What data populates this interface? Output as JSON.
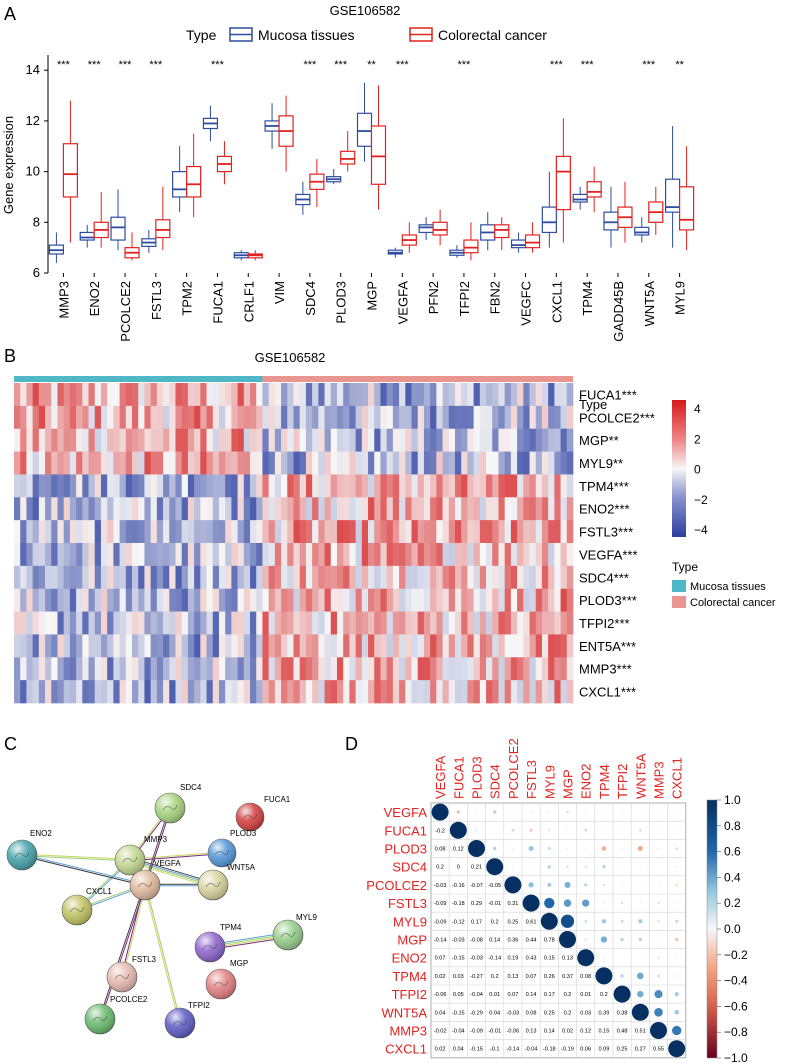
{
  "chart_data": [
    {
      "panel": "A",
      "type": "box",
      "title": "GSE106582",
      "ylabel": "Gene expression",
      "ylim": [
        6,
        14.6
      ],
      "yticks": [
        6,
        8,
        10,
        12,
        14
      ],
      "legend": {
        "title": "Type",
        "position": "top",
        "entries": [
          "Mucosa tissues",
          "Colorectal cancer"
        ]
      },
      "colors": {
        "mucosa": "#2E4DA0",
        "cancer": "#E2221F"
      },
      "categories": [
        "MMP3",
        "ENO2",
        "PCOLCE2",
        "FSTL3",
        "TPM2",
        "FUCA1",
        "CRLF1",
        "VIM",
        "SDC4",
        "PLOD3",
        "MGP",
        "VEGFA",
        "PFN2",
        "TFPI2",
        "FBN2",
        "VEGFC",
        "CXCL1",
        "TPM4",
        "GADD45B",
        "WNT5A",
        "MYL9"
      ],
      "significance": [
        "***",
        "***",
        "***",
        "***",
        "",
        "***",
        "",
        "",
        "***",
        "***",
        "**",
        "***",
        "",
        "***",
        "",
        "",
        "***",
        "***",
        "",
        "***",
        "**"
      ],
      "series": [
        {
          "name": "Mucosa tissues",
          "boxes": [
            [
              6.4,
              6.75,
              6.9,
              7.1,
              7.6
            ],
            [
              7.0,
              7.3,
              7.4,
              7.6,
              7.9
            ],
            [
              6.9,
              7.3,
              7.8,
              8.2,
              9.3
            ],
            [
              6.8,
              7.05,
              7.2,
              7.35,
              7.7
            ],
            [
              8.4,
              9.0,
              9.3,
              10.0,
              11.0
            ],
            [
              11.2,
              11.7,
              11.9,
              12.1,
              12.6
            ],
            [
              6.5,
              6.6,
              6.7,
              6.8,
              6.9
            ],
            [
              10.9,
              11.6,
              11.8,
              12.0,
              12.7
            ],
            [
              8.3,
              8.7,
              8.9,
              9.1,
              9.6
            ],
            [
              9.5,
              9.6,
              9.7,
              9.8,
              10.1
            ],
            [
              10.4,
              11.0,
              11.6,
              12.3,
              13.5
            ],
            [
              6.6,
              6.75,
              6.8,
              6.9,
              7.0
            ],
            [
              7.3,
              7.6,
              7.8,
              7.9,
              8.2
            ],
            [
              6.6,
              6.7,
              6.8,
              6.9,
              7.1
            ],
            [
              6.9,
              7.3,
              7.6,
              7.9,
              8.4
            ],
            [
              6.8,
              7.0,
              7.1,
              7.3,
              7.6
            ],
            [
              7.0,
              7.6,
              8.0,
              8.6,
              10.0
            ],
            [
              8.5,
              8.8,
              8.9,
              9.1,
              9.4
            ],
            [
              7.0,
              7.7,
              8.0,
              8.4,
              9.4
            ],
            [
              7.2,
              7.5,
              7.6,
              7.8,
              8.2
            ],
            [
              7.0,
              8.4,
              8.6,
              9.7,
              11.8
            ]
          ]
        },
        {
          "name": "Colorectal cancer",
          "boxes": [
            [
              7.2,
              9.0,
              9.9,
              11.1,
              12.8
            ],
            [
              7.0,
              7.4,
              7.7,
              8.0,
              9.2
            ],
            [
              6.5,
              6.6,
              6.8,
              7.0,
              7.6
            ],
            [
              6.9,
              7.4,
              7.7,
              8.1,
              9.4
            ],
            [
              8.2,
              9.0,
              9.5,
              10.2,
              11.5
            ],
            [
              9.5,
              10.0,
              10.3,
              10.6,
              11.2
            ],
            [
              6.5,
              6.6,
              6.7,
              6.75,
              6.9
            ],
            [
              10.0,
              11.0,
              11.6,
              12.2,
              13.0
            ],
            [
              8.6,
              9.3,
              9.6,
              9.9,
              10.5
            ],
            [
              10.0,
              10.3,
              10.5,
              10.8,
              11.6
            ],
            [
              8.5,
              9.5,
              10.6,
              11.8,
              13.4
            ],
            [
              6.8,
              7.1,
              7.3,
              7.5,
              8.0
            ],
            [
              7.1,
              7.5,
              7.7,
              8.0,
              8.5
            ],
            [
              6.5,
              6.8,
              7.0,
              7.3,
              8.0
            ],
            [
              6.9,
              7.4,
              7.7,
              7.9,
              8.2
            ],
            [
              6.8,
              7.0,
              7.2,
              7.5,
              8.0
            ],
            [
              7.2,
              8.5,
              10.0,
              10.6,
              12.1
            ],
            [
              8.4,
              9.0,
              9.2,
              9.6,
              10.2
            ],
            [
              7.2,
              7.8,
              8.2,
              8.6,
              9.6
            ],
            [
              7.5,
              8.0,
              8.4,
              8.8,
              9.4
            ],
            [
              6.9,
              7.7,
              8.1,
              9.4,
              11.0
            ]
          ]
        }
      ]
    },
    {
      "panel": "B",
      "type": "heatmap",
      "title": "GSE106582",
      "annotation_label": "Type",
      "genes": [
        "FUCA1***",
        "PCOLCE2***",
        "MGP**",
        "MYL9**",
        "TPM4***",
        "ENO2***",
        "FSTL3***",
        "VEGFA***",
        "SDC4***",
        "PLOD3***",
        "TFPI2***",
        "ENT5A***",
        "MMP3***",
        "CXCL1***"
      ],
      "group_pattern": [
        -1,
        -1,
        -1,
        -1,
        1,
        1,
        1,
        1,
        1,
        1,
        1,
        1,
        1,
        1
      ],
      "scale_ticks": [
        4,
        2,
        0,
        -2,
        -4
      ],
      "legend": {
        "title": "Type",
        "entries": [
          {
            "name": "Mucosa tissues",
            "color": "#4EB8C6"
          },
          {
            "name": "Colorectal cancer",
            "color": "#E99590"
          }
        ]
      }
    },
    {
      "panel": "C",
      "type": "network",
      "nodes": [
        {
          "name": "SDC4",
          "color": "#A6D37C"
        },
        {
          "name": "FUCA1",
          "color": "#D43A3A"
        },
        {
          "name": "ENO2",
          "color": "#3F9FA8"
        },
        {
          "name": "MMP3",
          "color": "#BFD58C"
        },
        {
          "name": "PLOD3",
          "color": "#4F93D6"
        },
        {
          "name": "WNT5A",
          "color": "#D8D29A"
        },
        {
          "name": "VEGFA",
          "color": "#E0B79A"
        },
        {
          "name": "CXCL1",
          "color": "#BFC25E"
        },
        {
          "name": "TPM4",
          "color": "#8A5FCB"
        },
        {
          "name": "MYL9",
          "color": "#92CC86"
        },
        {
          "name": "MGP",
          "color": "#E17D7D"
        },
        {
          "name": "FSTL3",
          "color": "#E6B8AE"
        },
        {
          "name": "PCOLCE2",
          "color": "#65B86A"
        },
        {
          "name": "TFPI2",
          "color": "#5858C4"
        }
      ],
      "edges": [
        [
          "MMP3",
          "SDC4"
        ],
        [
          "MMP3",
          "VEGFA"
        ],
        [
          "MMP3",
          "WNT5A"
        ],
        [
          "MMP3",
          "CXCL1"
        ],
        [
          "MMP3",
          "ENO2"
        ],
        [
          "MMP3",
          "PLOD3"
        ],
        [
          "VEGFA",
          "SDC4"
        ],
        [
          "VEGFA",
          "WNT5A"
        ],
        [
          "VEGFA",
          "CXCL1"
        ],
        [
          "VEGFA",
          "TFPI2"
        ],
        [
          "VEGFA",
          "FSTL3"
        ],
        [
          "VEGFA",
          "PCOLCE2"
        ],
        [
          "VEGFA",
          "ENO2"
        ],
        [
          "TPM4",
          "MYL9"
        ]
      ]
    },
    {
      "panel": "D",
      "type": "correlation",
      "genes": [
        "VEGFA",
        "FUCA1",
        "PLOD3",
        "SDC4",
        "PCOLCE2",
        "FSTL3",
        "MYL9",
        "MGP",
        "ENO2",
        "TPM4",
        "TFPI2",
        "WNT5A",
        "MMP3",
        "CXCL1"
      ],
      "lower": [
        [],
        [
          "-0.2"
        ],
        [
          "0.08",
          "0.12"
        ],
        [
          "0.2",
          "0",
          "0.21"
        ],
        [
          "-0.03",
          "-0.16",
          "-0.07",
          "-0.05"
        ],
        [
          "-0.09",
          "-0.18",
          "0.29",
          "-0.01",
          "0.31"
        ],
        [
          "-0.09",
          "-0.12",
          "0.17",
          "0.2",
          "0.25",
          "0.61"
        ],
        [
          "-0.14",
          "-0.03",
          "-0.08",
          "0.14",
          "0.36",
          "0.44",
          "0.78"
        ],
        [
          "0.07",
          "-0.15",
          "-0.03",
          "-0.14",
          "0.19",
          "0.43",
          "0.15",
          "0.13"
        ],
        [
          "0.02",
          "0.03",
          "-0.27",
          "0.2",
          "0.13",
          "0.07",
          "0.26",
          "0.37",
          "0.08"
        ],
        [
          "-0.06",
          "0.05",
          "-0.04",
          "0.01",
          "0.07",
          "0.14",
          "0.17",
          "0.2",
          "0.01",
          "0.2"
        ],
        [
          "0.04",
          "-0.15",
          "-0.29",
          "0.04",
          "-0.03",
          "0.08",
          "0.25",
          "0.2",
          "0.03",
          "0.39",
          "0.38"
        ],
        [
          "-0.02",
          "-0.04",
          "-0.09",
          "-0.01",
          "-0.06",
          "0.13",
          "0.14",
          "0.02",
          "0.12",
          "0.15",
          "0.48",
          "0.51"
        ],
        [
          "0.02",
          "0.04",
          "-0.15",
          "-0.1",
          "-0.14",
          "-0.04",
          "-0.18",
          "-0.19",
          "0.06",
          "0.09",
          "0.25",
          "0.27",
          "0.55"
        ]
      ],
      "scale_ticks": [
        "1.0",
        "0.8",
        "0.6",
        "0.4",
        "0.2",
        "0.0",
        "−0.2",
        "−0.4",
        "−0.6",
        "−0.8",
        "−1.0"
      ]
    }
  ],
  "panel_labels": [
    "A",
    "B",
    "C",
    "D"
  ]
}
